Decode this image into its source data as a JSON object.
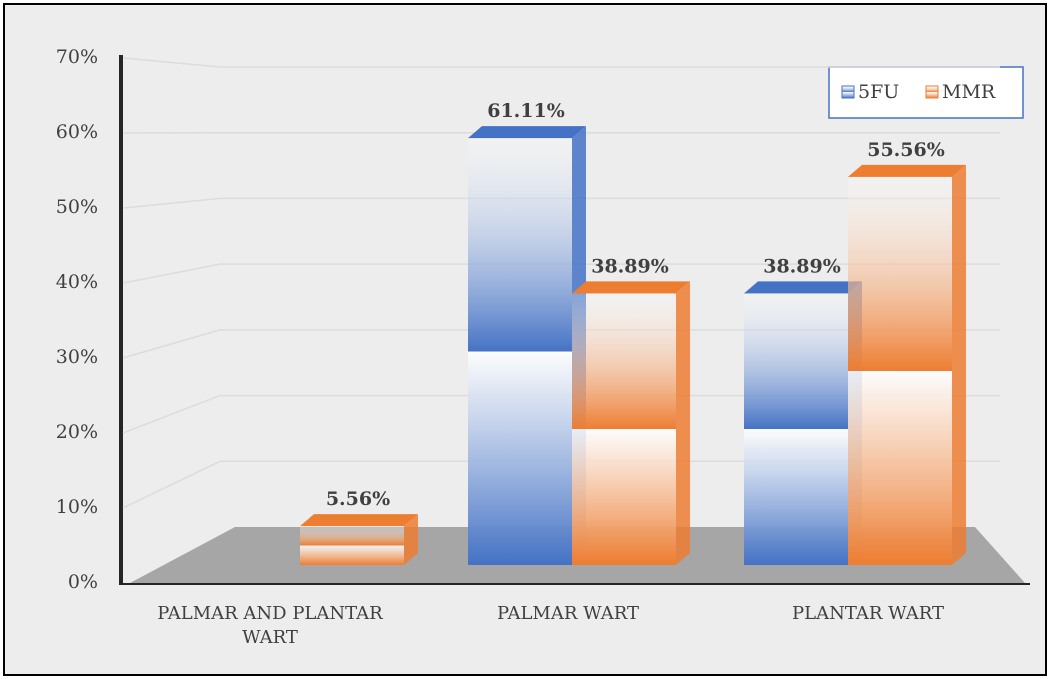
{
  "chart_data": {
    "type": "bar3d",
    "categories": [
      "PALMAR AND PLANTAR WART",
      "PALMAR WART",
      "PLANTAR WART"
    ],
    "series": [
      {
        "name": "5FU",
        "color": "#4472c4",
        "values": [
          null,
          61.11,
          38.89
        ],
        "value_labels": [
          null,
          "61.11%",
          "38.89%"
        ]
      },
      {
        "name": "MMR",
        "color": "#ed7d31",
        "values": [
          5.56,
          38.89,
          55.56
        ],
        "value_labels": [
          "5.56%",
          "38.89%",
          "55.56%"
        ]
      }
    ],
    "ylim": [
      0,
      70
    ],
    "yticks": [
      {
        "value": 0,
        "label": "0%"
      },
      {
        "value": 10,
        "label": "10%"
      },
      {
        "value": 20,
        "label": "20%"
      },
      {
        "value": 30,
        "label": "30%"
      },
      {
        "value": 40,
        "label": "40%"
      },
      {
        "value": 50,
        "label": "50%"
      },
      {
        "value": 60,
        "label": "60%"
      },
      {
        "value": 70,
        "label": "70%"
      }
    ],
    "grid": true,
    "legend": "top-right"
  }
}
